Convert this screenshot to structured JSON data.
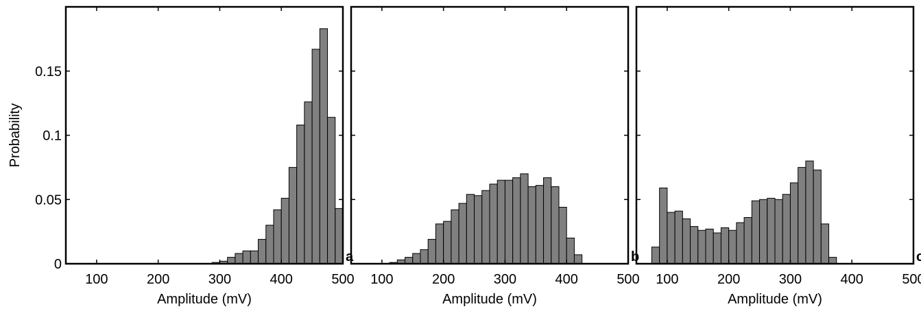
{
  "chart_data": [
    {
      "panel": "a",
      "type": "bar",
      "xlabel": "Amplitude (mV)",
      "ylabel": "Probability",
      "xlim": [
        50,
        500
      ],
      "ylim": [
        0,
        0.2
      ],
      "xticks": [
        "100",
        "200",
        "300",
        "400",
        "500"
      ],
      "yticks": [
        "0",
        "0.05",
        "0.1",
        "0.15"
      ],
      "bar_width": 12.5,
      "bar_color": "#808080",
      "x": [
        293.75,
        306.25,
        318.75,
        331.25,
        343.75,
        356.25,
        368.75,
        381.25,
        393.75,
        406.25,
        418.75,
        431.25,
        443.75,
        456.25,
        468.75,
        481.25,
        493.75
      ],
      "values": [
        0.001,
        0.002,
        0.005,
        0.008,
        0.01,
        0.01,
        0.019,
        0.03,
        0.042,
        0.051,
        0.075,
        0.108,
        0.126,
        0.167,
        0.183,
        0.114,
        0.043
      ]
    },
    {
      "panel": "b",
      "type": "bar",
      "xlabel": "Amplitude (mV)",
      "ylabel": "",
      "xlim": [
        50,
        500
      ],
      "ylim": [
        0,
        0.2
      ],
      "xticks": [
        "100",
        "200",
        "300",
        "400",
        "500"
      ],
      "yticks": [],
      "bar_width": 12.5,
      "bar_color": "#808080",
      "x": [
        118.75,
        131.25,
        143.75,
        156.25,
        168.75,
        181.25,
        193.75,
        206.25,
        218.75,
        231.25,
        243.75,
        256.25,
        268.75,
        281.25,
        293.75,
        306.25,
        318.75,
        331.25,
        343.75,
        356.25,
        368.75,
        381.25,
        393.75,
        406.25,
        418.75
      ],
      "values": [
        0.001,
        0.003,
        0.005,
        0.008,
        0.011,
        0.019,
        0.031,
        0.033,
        0.042,
        0.047,
        0.054,
        0.053,
        0.057,
        0.062,
        0.065,
        0.065,
        0.067,
        0.07,
        0.06,
        0.061,
        0.067,
        0.06,
        0.044,
        0.02,
        0.007
      ]
    },
    {
      "panel": "c",
      "type": "bar",
      "xlabel": "Amplitude (mV)",
      "ylabel": "",
      "xlim": [
        50,
        500
      ],
      "ylim": [
        0,
        0.2
      ],
      "xticks": [
        "100",
        "200",
        "300",
        "400",
        "500"
      ],
      "yticks": [],
      "bar_width": 12.5,
      "bar_color": "#808080",
      "x": [
        81.25,
        93.75,
        106.25,
        118.75,
        131.25,
        143.75,
        156.25,
        168.75,
        181.25,
        193.75,
        206.25,
        218.75,
        231.25,
        243.75,
        256.25,
        268.75,
        281.25,
        293.75,
        306.25,
        318.75,
        331.25,
        343.75,
        356.25,
        368.75
      ],
      "values": [
        0.013,
        0.059,
        0.04,
        0.041,
        0.035,
        0.029,
        0.026,
        0.027,
        0.024,
        0.028,
        0.026,
        0.032,
        0.036,
        0.049,
        0.05,
        0.051,
        0.05,
        0.054,
        0.063,
        0.075,
        0.08,
        0.073,
        0.031,
        0.005
      ]
    }
  ]
}
